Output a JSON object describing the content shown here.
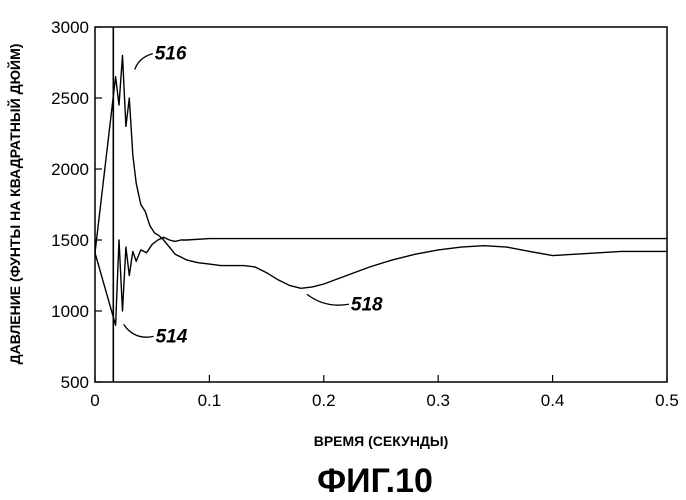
{
  "chart_data": {
    "type": "line",
    "title": "",
    "xlabel": "ВРЕМЯ (СЕКУНДЫ)",
    "ylabel": "ДАВЛЕНИЕ (ФУНТЫ НА КВАДРАТНЫЙ ДЮЙМ)",
    "figure_label": "ФИГ.10",
    "xlim": [
      0,
      0.5
    ],
    "ylim": [
      500,
      3000
    ],
    "x_ticks": [
      "0",
      "0.1",
      "0.2",
      "0.3",
      "0.4",
      "0.5"
    ],
    "y_ticks": [
      "500",
      "1000",
      "1500",
      "2000",
      "2500",
      "3000"
    ],
    "grid": false,
    "annotations": [
      {
        "text": "516",
        "x": 0.026,
        "y": 2700
      },
      {
        "text": "514",
        "x": 0.018,
        "y": 920
      },
      {
        "text": "518",
        "x": 0.18,
        "y": 1160
      }
    ],
    "series": [
      {
        "id": "516",
        "x": [
          0.0,
          0.018,
          0.021,
          0.024,
          0.027,
          0.03,
          0.033,
          0.036,
          0.04,
          0.044,
          0.048,
          0.052,
          0.056,
          0.06,
          0.065,
          0.07,
          0.075,
          0.08,
          0.09,
          0.1,
          0.11,
          0.12,
          0.13,
          0.14,
          0.15,
          0.16,
          0.17,
          0.18,
          0.19,
          0.2,
          0.22,
          0.24,
          0.26,
          0.28,
          0.3,
          0.32,
          0.34,
          0.36,
          0.38,
          0.4,
          0.42,
          0.44,
          0.46,
          0.48,
          0.5
        ],
        "y": [
          1410,
          2650,
          2450,
          2800,
          2300,
          2500,
          2100,
          1900,
          1750,
          1700,
          1600,
          1550,
          1530,
          1500,
          1450,
          1400,
          1380,
          1360,
          1340,
          1330,
          1320,
          1320,
          1320,
          1310,
          1270,
          1220,
          1180,
          1160,
          1170,
          1190,
          1250,
          1310,
          1360,
          1400,
          1430,
          1450,
          1460,
          1450,
          1420,
          1390,
          1400,
          1410,
          1420,
          1420,
          1420
        ]
      },
      {
        "id": "514",
        "x": [
          0.0,
          0.018,
          0.021,
          0.024,
          0.027,
          0.03,
          0.033,
          0.036,
          0.04,
          0.045,
          0.05,
          0.055,
          0.06,
          0.065,
          0.07,
          0.075,
          0.08,
          0.1,
          0.15,
          0.2,
          0.3,
          0.4,
          0.5
        ],
        "y": [
          1410,
          900,
          1500,
          1000,
          1450,
          1250,
          1420,
          1350,
          1430,
          1410,
          1470,
          1500,
          1520,
          1500,
          1490,
          1500,
          1500,
          1510,
          1510,
          1510,
          1510,
          1510,
          1510
        ]
      }
    ]
  }
}
